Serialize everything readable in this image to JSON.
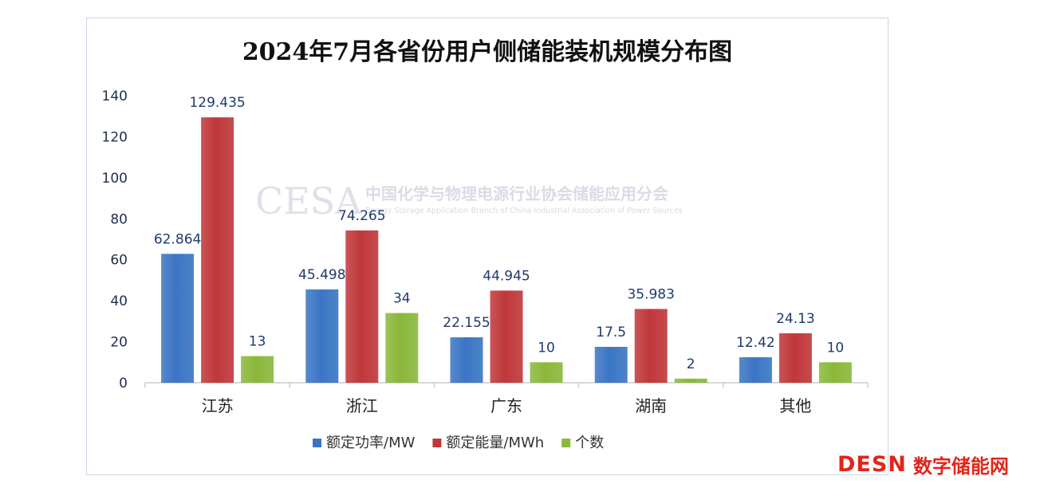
{
  "chart_data": {
    "type": "bar",
    "title": "2024年7月各省份用户侧储能装机规模分布图",
    "categories": [
      "江苏",
      "浙江",
      "广东",
      "湖南",
      "其他"
    ],
    "series": [
      {
        "name": "额定功率/MW",
        "color": "#3a75c4",
        "values": [
          62.864,
          45.498,
          22.155,
          17.5,
          12.42
        ],
        "labels": [
          "62.864",
          "45.498",
          "22.155",
          "17.5",
          "12.42"
        ]
      },
      {
        "name": "额定能量/MWh",
        "color": "#c0373a",
        "values": [
          129.435,
          74.265,
          44.945,
          35.983,
          24.13
        ],
        "labels": [
          "129.435",
          "74.265",
          "44.945",
          "35.983",
          "24.13"
        ]
      },
      {
        "name": "个数",
        "color": "#8ab83a",
        "values": [
          13,
          34,
          10,
          2,
          10
        ],
        "labels": [
          "13",
          "34",
          "10",
          "2",
          "10"
        ]
      }
    ],
    "ylim": [
      0,
      140
    ],
    "yticks": [
      0,
      20,
      40,
      60,
      80,
      100,
      120,
      140
    ],
    "legend_position": "bottom",
    "grid": false
  },
  "watermark": {
    "logo_text": "CESA",
    "org_name": "中国化学与物理电源行业协会储能应用分会",
    "org_name_en": "Energy Storage Application Branch of China Industrial Association of Power Sources"
  },
  "brand": {
    "logo_en": "DESN",
    "logo_cn": "数字储能网",
    "color": "#e1251b"
  }
}
